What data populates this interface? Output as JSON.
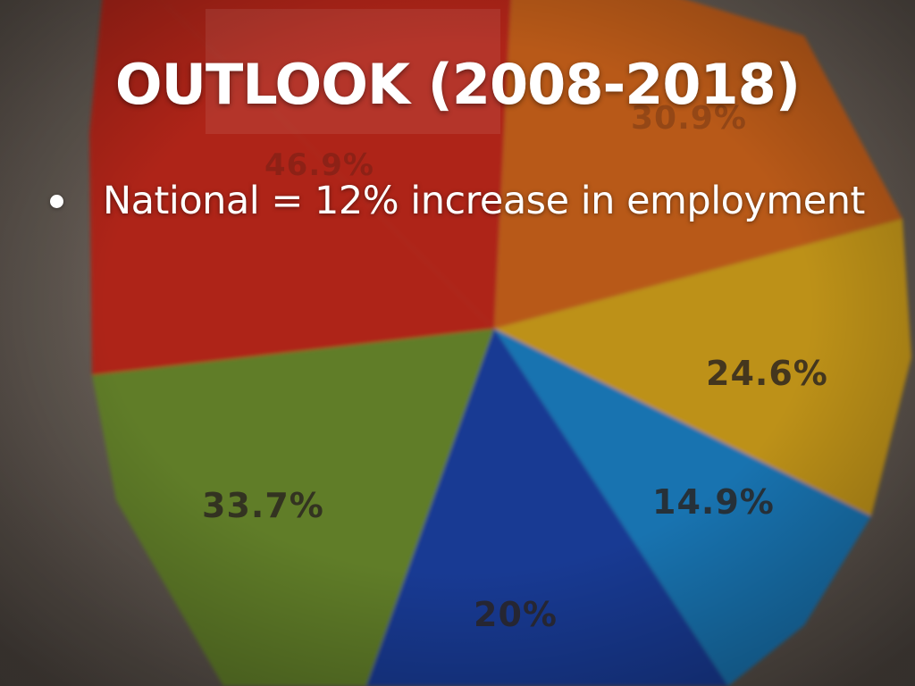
{
  "slide": {
    "title": "OUTLOOK (2008-2018)",
    "bullets": [
      {
        "text": "National = 12% increase in employment"
      }
    ]
  },
  "background_photo": {
    "description_type": "blurred photograph of a pie chart",
    "slice_labels": [
      "46.9%",
      "30.9%",
      "24.6%",
      "14.9%",
      "20%",
      "33.7%"
    ],
    "slice_colors": {
      "red": "#c62a1c",
      "orange": "#d2661e",
      "yellow": "#d8a51e",
      "light_blue": "#1d83c9",
      "dark_blue": "#1f43a8",
      "green": "#6e8f2f"
    }
  },
  "colors": {
    "title_text": "#ffffff",
    "bullet_text": "#ffffff"
  }
}
